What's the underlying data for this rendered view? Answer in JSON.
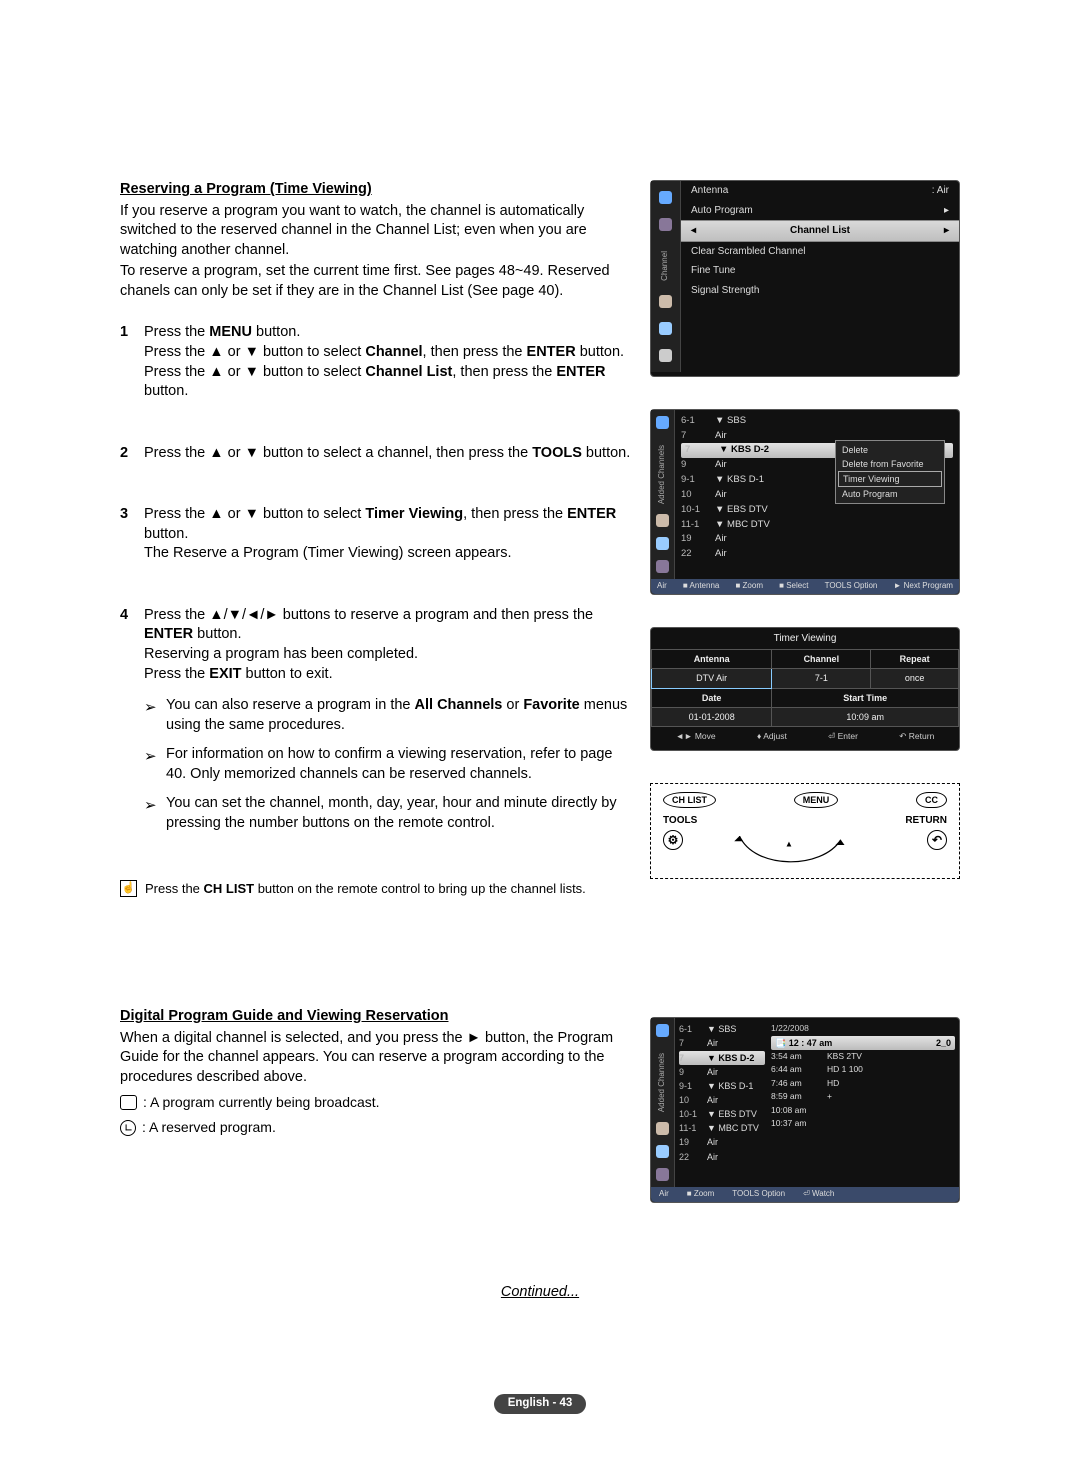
{
  "section1": {
    "title": "Reserving a Program (Time Viewing)",
    "intro1": "If you reserve a program you want to watch, the channel is automatically switched to the reserved channel in the Channel List; even when you are watching another channel.",
    "intro2": "To reserve a program, set the current time first. See pages 48~49. Reserved chanels can only be set if they are in the Channel List (See page 40).",
    "step1a": "Press the MENU button.",
    "step1b": "Press the ▲ or ▼ button to select Channel, then press the ENTER button.",
    "step1c": "Press the ▲ or ▼ button to select Channel List, then press the ENTER button.",
    "step2": "Press the ▲ or ▼ button to select a channel, then press the TOOLS button.",
    "step3a": "Press the ▲ or ▼ button to select Timer Viewing, then press the ENTER button.",
    "step3b": "The Reserve a Program (Timer Viewing) screen appears.",
    "step4a": "Press the ▲/▼/◄/► buttons to reserve a program and then press the ENTER button.",
    "step4b": "Reserving a program has been completed.",
    "step4c": "Press the EXIT button to exit.",
    "sub1": "You can also reserve a program in the All Channels or Favorite menus using the same procedures.",
    "sub2": "For information on how to confirm a viewing reservation, refer to page 40. Only memorized channels can be reserved channels.",
    "sub3": "You can set the channel, month, day, year, hour and minute directly by pressing the number buttons on the remote control.",
    "note": "Press the CH LIST button on the remote control to bring up the channel lists."
  },
  "section2": {
    "title": "Digital Program Guide and Viewing Reservation",
    "body": "When a digital channel is selected, and you press the ► button, the Program Guide for the channel appears. You can reserve a program according to the procedures described above.",
    "legend1": ": A program currently being broadcast.",
    "legend2": ": A reserved program."
  },
  "continued": "Continued...",
  "pagelabel": "English - 43",
  "osd_menu": {
    "antenna_lbl": "Antenna",
    "antenna_val": ": Air",
    "auto_program": "Auto Program",
    "channel_list": "Channel List",
    "clear_scrambled": "Clear Scrambled Channel",
    "fine_tune": "Fine Tune",
    "signal_strength": "Signal Strength",
    "side_lbl": "Channel"
  },
  "osd_chlist": {
    "side_lbl": "Added Channels",
    "rows": [
      {
        "num": "6-1",
        "name": "▼ SBS"
      },
      {
        "num": "7",
        "name": "Air"
      },
      {
        "num": "7",
        "name": "▼ KBS D-2"
      },
      {
        "num": "9",
        "name": "Air"
      },
      {
        "num": "9-1",
        "name": "▼ KBS D-1"
      },
      {
        "num": "10",
        "name": "Air"
      },
      {
        "num": "10-1",
        "name": "▼ EBS DTV"
      },
      {
        "num": "11-1",
        "name": "▼ MBC DTV"
      },
      {
        "num": "19",
        "name": "Air"
      },
      {
        "num": "22",
        "name": "Air"
      }
    ],
    "ctx": [
      "Delete",
      "Delete from Favorite",
      "Timer Viewing",
      "Auto Program"
    ],
    "foot": [
      "Air",
      "■ Antenna",
      "■ Zoom",
      "■ Select",
      "TOOLS Option",
      "► Next Program"
    ]
  },
  "osd_timer": {
    "header": "Timer Viewing",
    "antenna_h": "Antenna",
    "channel_h": "Channel",
    "repeat_h": "Repeat",
    "antenna_v": "DTV Air",
    "channel_v": "7-1",
    "repeat_v": "once",
    "date_h": "Date",
    "start_h": "Start Time",
    "date_v": "01-01-2008",
    "start_v": "10:09 am",
    "foot": [
      "◄► Move",
      "♦ Adjust",
      "⏎ Enter",
      "↶ Return"
    ]
  },
  "remote": {
    "chlist": "CH LIST",
    "menu": "MENU",
    "cc": "CC",
    "tools": "TOOLS",
    "return": "RETURN"
  },
  "osd_guide": {
    "side_lbl": "Added Channels",
    "rows": [
      {
        "num": "6-1",
        "name": "▼ SBS"
      },
      {
        "num": "7",
        "name": "Air"
      },
      {
        "num": "7",
        "name": "▼ KBS D-2"
      },
      {
        "num": "9",
        "name": "Air"
      },
      {
        "num": "9-1",
        "name": "▼ KBS D-1"
      },
      {
        "num": "10",
        "name": "Air"
      },
      {
        "num": "10-1",
        "name": "▼ EBS DTV"
      },
      {
        "num": "11-1",
        "name": "▼ MBC DTV"
      },
      {
        "num": "19",
        "name": "Air"
      },
      {
        "num": "22",
        "name": "Air"
      }
    ],
    "date": "1/22/2008",
    "now_time": "📑 12 : 47 am",
    "now_ch": "2_0",
    "prog": [
      {
        "t": "3:54 am",
        "p": "KBS 2TV"
      },
      {
        "t": "6:44 am",
        "p": "HD 1 100"
      },
      {
        "t": "7:46 am",
        "p": "HD"
      },
      {
        "t": "8:59 am",
        "p": "+"
      },
      {
        "t": "10:08 am",
        "p": ""
      },
      {
        "t": "10:37 am",
        "p": ""
      }
    ],
    "foot": [
      "Air",
      "■ Zoom",
      "TOOLS Option",
      "⏎ Watch"
    ]
  }
}
